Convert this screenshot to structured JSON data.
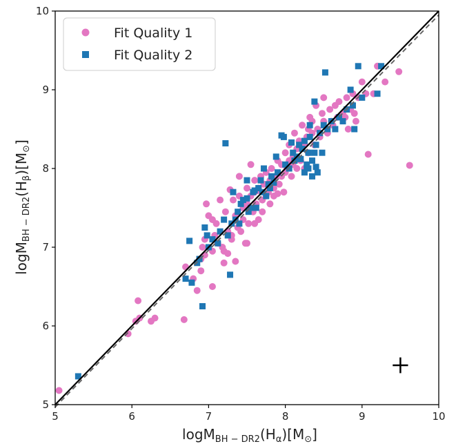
{
  "chart_data": {
    "type": "scatter",
    "title": "",
    "xlabel": {
      "main": "logM",
      "sub": "BH − DR2",
      "rest": "(H",
      "rest_sub": "α",
      "tail": ")[M",
      "tail_sub": "⊙",
      "end": "]"
    },
    "ylabel": {
      "main": "logM",
      "sub": "BH − DR2",
      "rest": "(H",
      "rest_sub": "β",
      "tail": ")[M",
      "tail_sub": "⊙",
      "end": "]"
    },
    "xlim": [
      5,
      10
    ],
    "ylim": [
      5,
      10
    ],
    "xticks": [
      5,
      6,
      7,
      8,
      9,
      10
    ],
    "yticks": [
      5,
      6,
      7,
      8,
      9,
      10
    ],
    "grid": false,
    "legend_position": "top-left",
    "one_to_one_line": {
      "x": [
        5,
        10
      ],
      "y": [
        5,
        10
      ],
      "color": "#000000",
      "style": "solid"
    },
    "fit_line": {
      "x": [
        5,
        10
      ],
      "y": [
        4.97,
        9.95
      ],
      "color": "#666666",
      "style": "dashed"
    },
    "error_bar": {
      "x": 9.5,
      "y": 5.5,
      "xerr": 0.1,
      "yerr": 0.1,
      "color": "#000000"
    },
    "series": [
      {
        "name": "Fit Quality 1",
        "marker": "circle",
        "color": "#e377c2",
        "points": [
          [
            5.05,
            5.18
          ],
          [
            5.95,
            5.9
          ],
          [
            6.05,
            6.06
          ],
          [
            6.08,
            6.32
          ],
          [
            6.1,
            6.1
          ],
          [
            6.25,
            6.06
          ],
          [
            6.3,
            6.1
          ],
          [
            6.68,
            6.08
          ],
          [
            6.7,
            6.75
          ],
          [
            6.8,
            6.6
          ],
          [
            6.9,
            6.85
          ],
          [
            6.9,
            6.7
          ],
          [
            6.92,
            7.0
          ],
          [
            6.95,
            7.1
          ],
          [
            6.95,
            6.9
          ],
          [
            6.97,
            7.55
          ],
          [
            7.0,
            7.4
          ],
          [
            7.05,
            6.5
          ],
          [
            7.05,
            6.95
          ],
          [
            7.08,
            7.15
          ],
          [
            7.1,
            7.3
          ],
          [
            7.12,
            7.05
          ],
          [
            7.15,
            7.6
          ],
          [
            7.18,
            7.0
          ],
          [
            7.2,
            6.95
          ],
          [
            7.22,
            7.45
          ],
          [
            7.25,
            6.92
          ],
          [
            7.25,
            7.2
          ],
          [
            7.28,
            7.73
          ],
          [
            7.3,
            7.1
          ],
          [
            7.32,
            7.6
          ],
          [
            7.35,
            7.4
          ],
          [
            7.35,
            6.82
          ],
          [
            7.38,
            7.25
          ],
          [
            7.4,
            7.65
          ],
          [
            7.4,
            7.9
          ],
          [
            7.42,
            7.2
          ],
          [
            7.45,
            7.5
          ],
          [
            7.45,
            7.35
          ],
          [
            7.48,
            7.05
          ],
          [
            7.5,
            7.55
          ],
          [
            7.5,
            7.75
          ],
          [
            7.52,
            7.3
          ],
          [
            7.55,
            7.65
          ],
          [
            7.55,
            8.05
          ],
          [
            7.58,
            7.45
          ],
          [
            7.6,
            7.7
          ],
          [
            7.6,
            7.85
          ],
          [
            7.62,
            7.55
          ],
          [
            7.65,
            7.75
          ],
          [
            7.65,
            7.35
          ],
          [
            7.68,
            7.9
          ],
          [
            7.7,
            7.6
          ],
          [
            7.7,
            7.45
          ],
          [
            7.72,
            7.8
          ],
          [
            7.75,
            7.95
          ],
          [
            7.75,
            7.65
          ],
          [
            7.78,
            7.7
          ],
          [
            7.8,
            7.85
          ],
          [
            7.8,
            7.55
          ],
          [
            7.82,
            8.0
          ],
          [
            7.85,
            7.75
          ],
          [
            7.88,
            7.9
          ],
          [
            7.9,
            7.68
          ],
          [
            7.9,
            8.1
          ],
          [
            7.92,
            7.8
          ],
          [
            7.95,
            8.05
          ],
          [
            7.95,
            7.9
          ],
          [
            7.98,
            7.7
          ],
          [
            8.0,
            8.2
          ],
          [
            8.0,
            7.95
          ],
          [
            8.02,
            8.0
          ],
          [
            8.05,
            8.3
          ],
          [
            8.05,
            8.1
          ],
          [
            8.08,
            7.9
          ],
          [
            8.1,
            8.15
          ],
          [
            8.12,
            8.45
          ],
          [
            8.15,
            8.0
          ],
          [
            8.15,
            8.25
          ],
          [
            8.18,
            8.35
          ],
          [
            8.2,
            8.1
          ],
          [
            8.22,
            8.55
          ],
          [
            8.25,
            8.3
          ],
          [
            8.25,
            8.0
          ],
          [
            8.28,
            8.4
          ],
          [
            8.3,
            8.5
          ],
          [
            8.3,
            8.2
          ],
          [
            8.32,
            8.65
          ],
          [
            8.35,
            8.6
          ],
          [
            8.38,
            8.3
          ],
          [
            8.4,
            8.8
          ],
          [
            8.42,
            8.5
          ],
          [
            8.45,
            8.4
          ],
          [
            8.48,
            8.7
          ],
          [
            8.5,
            8.6
          ],
          [
            8.5,
            8.9
          ],
          [
            8.55,
            8.45
          ],
          [
            8.58,
            8.75
          ],
          [
            8.6,
            8.6
          ],
          [
            8.62,
            8.55
          ],
          [
            8.65,
            8.8
          ],
          [
            8.68,
            8.65
          ],
          [
            8.7,
            8.85
          ],
          [
            8.75,
            8.7
          ],
          [
            8.78,
            8.65
          ],
          [
            8.8,
            8.9
          ],
          [
            8.82,
            8.5
          ],
          [
            8.85,
            8.75
          ],
          [
            8.88,
            8.95
          ],
          [
            8.9,
            8.7
          ],
          [
            8.92,
            8.6
          ],
          [
            8.95,
            8.9
          ],
          [
            9.0,
            9.1
          ],
          [
            9.05,
            8.95
          ],
          [
            9.08,
            8.18
          ],
          [
            9.15,
            8.95
          ],
          [
            9.2,
            9.3
          ],
          [
            9.3,
            9.1
          ],
          [
            9.48,
            9.23
          ],
          [
            9.62,
            8.04
          ],
          [
            7.2,
            6.8
          ],
          [
            7.3,
            7.15
          ],
          [
            7.5,
            7.05
          ],
          [
            7.6,
            7.3
          ],
          [
            6.85,
            6.45
          ],
          [
            7.05,
            7.35
          ],
          [
            7.65,
            7.72
          ],
          [
            7.85,
            7.65
          ],
          [
            8.1,
            8.05
          ],
          [
            8.35,
            8.45
          ]
        ]
      },
      {
        "name": "Fit Quality 2",
        "marker": "square",
        "color": "#1f77b4",
        "points": [
          [
            5.3,
            5.36
          ],
          [
            6.7,
            6.6
          ],
          [
            6.75,
            7.08
          ],
          [
            6.78,
            6.55
          ],
          [
            6.85,
            6.8
          ],
          [
            6.88,
            6.85
          ],
          [
            6.92,
            6.25
          ],
          [
            6.95,
            7.25
          ],
          [
            7.0,
            7.0
          ],
          [
            7.05,
            7.1
          ],
          [
            7.12,
            7.05
          ],
          [
            7.15,
            7.2
          ],
          [
            7.2,
            7.35
          ],
          [
            7.22,
            8.32
          ],
          [
            7.25,
            7.15
          ],
          [
            7.28,
            6.65
          ],
          [
            7.3,
            7.3
          ],
          [
            7.32,
            7.7
          ],
          [
            7.35,
            7.35
          ],
          [
            7.38,
            7.45
          ],
          [
            7.4,
            7.3
          ],
          [
            7.42,
            7.55
          ],
          [
            7.45,
            7.6
          ],
          [
            7.5,
            7.62
          ],
          [
            7.52,
            7.45
          ],
          [
            7.55,
            7.5
          ],
          [
            7.58,
            7.7
          ],
          [
            7.6,
            7.72
          ],
          [
            7.62,
            7.5
          ],
          [
            7.65,
            7.75
          ],
          [
            7.7,
            7.7
          ],
          [
            7.72,
            8.0
          ],
          [
            7.75,
            7.65
          ],
          [
            7.78,
            7.8
          ],
          [
            7.8,
            7.75
          ],
          [
            7.82,
            7.9
          ],
          [
            7.85,
            7.82
          ],
          [
            7.88,
            8.15
          ],
          [
            7.9,
            7.95
          ],
          [
            7.95,
            8.42
          ],
          [
            7.98,
            8.4
          ],
          [
            8.0,
            8.05
          ],
          [
            8.05,
            8.0
          ],
          [
            8.08,
            8.33
          ],
          [
            8.1,
            8.2
          ],
          [
            8.12,
            8.1
          ],
          [
            8.15,
            8.15
          ],
          [
            8.18,
            8.3
          ],
          [
            8.2,
            8.12
          ],
          [
            8.22,
            8.25
          ],
          [
            8.25,
            8.35
          ],
          [
            8.28,
            8.05
          ],
          [
            8.3,
            8.2
          ],
          [
            8.32,
            8.4
          ],
          [
            8.35,
            8.1
          ],
          [
            8.38,
            8.2
          ],
          [
            8.4,
            8.3
          ],
          [
            8.42,
            7.95
          ],
          [
            8.45,
            8.45
          ],
          [
            8.48,
            8.2
          ],
          [
            8.5,
            8.55
          ],
          [
            8.52,
            9.22
          ],
          [
            8.55,
            8.5
          ],
          [
            8.6,
            8.6
          ],
          [
            8.65,
            8.5
          ],
          [
            8.7,
            8.65
          ],
          [
            8.75,
            8.6
          ],
          [
            8.8,
            8.75
          ],
          [
            8.85,
            9.0
          ],
          [
            8.88,
            8.8
          ],
          [
            8.9,
            8.5
          ],
          [
            8.95,
            9.3
          ],
          [
            9.0,
            8.9
          ],
          [
            9.2,
            8.95
          ],
          [
            9.25,
            9.3
          ],
          [
            8.3,
            8.0
          ],
          [
            8.35,
            7.9
          ],
          [
            8.25,
            7.95
          ],
          [
            8.32,
            8.55
          ],
          [
            8.38,
            8.85
          ],
          [
            8.28,
            8.0
          ],
          [
            8.4,
            8.02
          ],
          [
            7.68,
            7.85
          ],
          [
            7.5,
            7.85
          ],
          [
            6.98,
            7.15
          ]
        ]
      }
    ]
  }
}
